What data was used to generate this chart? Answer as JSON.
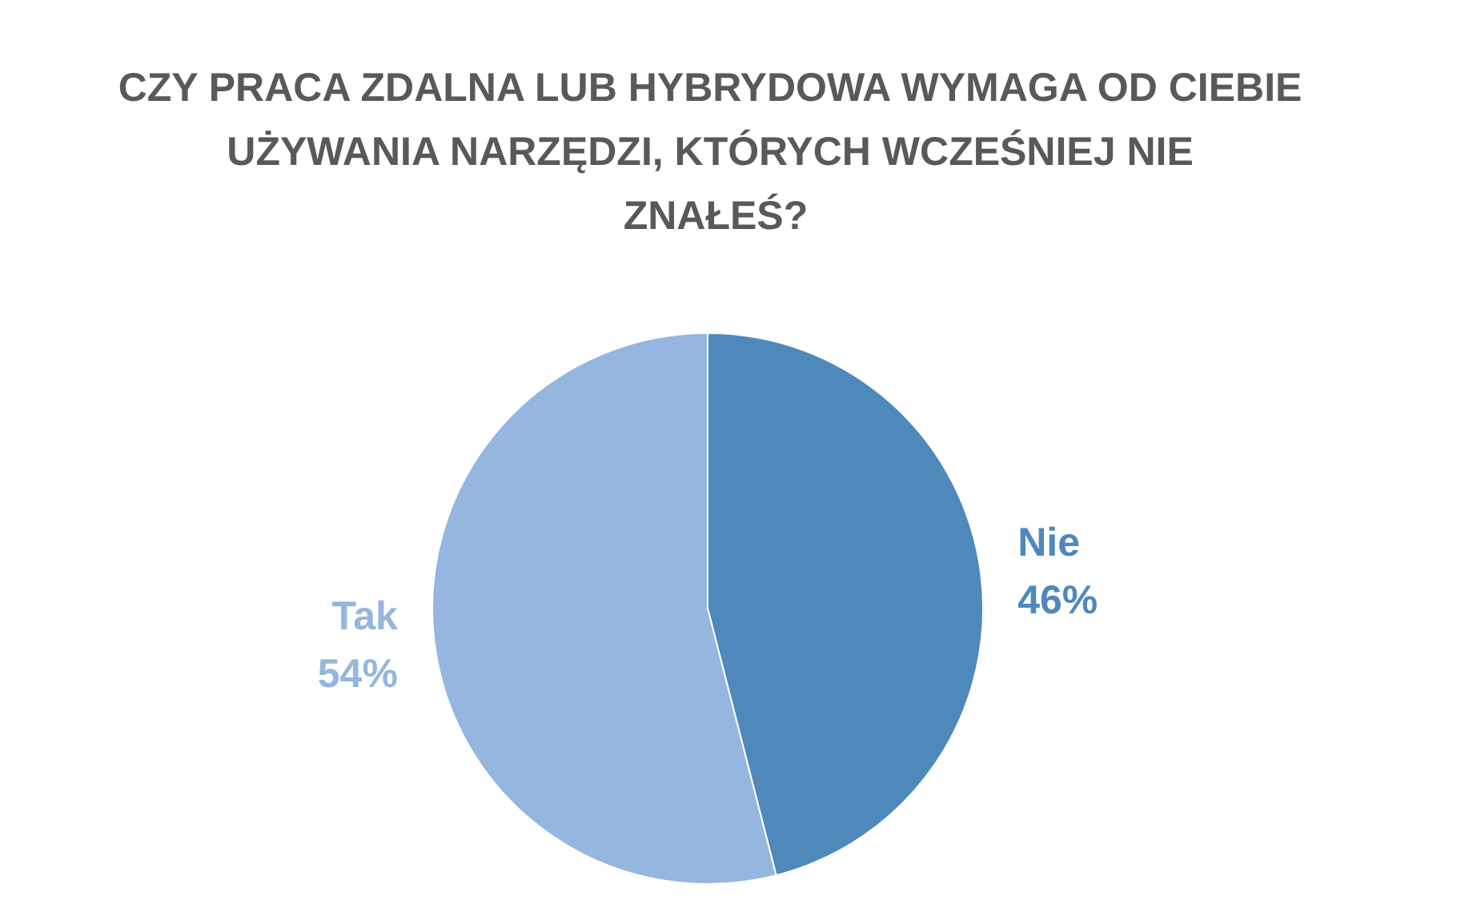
{
  "chart_data": {
    "type": "pie",
    "title": "CZY PRACA ZDALNA LUB HYBRYDOWA WYMAGA OD CIEBIE UŻYWANIA NARZĘDZI, KTÓRYCH WCZEŚNIEJ NIE ZNAŁEŚ?",
    "categories": [
      "Nie",
      "Tak"
    ],
    "values": [
      46,
      54
    ],
    "colors": [
      "#4f88bb",
      "#95b6de"
    ],
    "value_labels": [
      "46%",
      "54%"
    ],
    "legend": false
  }
}
